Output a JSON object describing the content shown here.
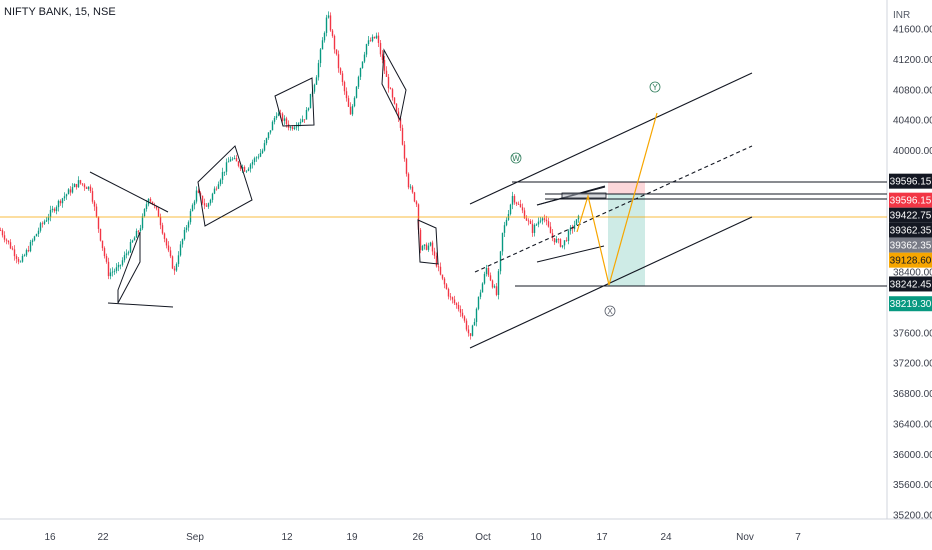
{
  "chart_data": {
    "type": "candlestick",
    "title": "NIFTY BANK, 15, NSE",
    "y_unit": "INR",
    "ylim": [
      35100,
      41950
    ],
    "x_ticks": [
      "16",
      "22",
      "Sep",
      "12",
      "19",
      "26",
      "Oct",
      "10",
      "17",
      "24",
      "Nov",
      "7"
    ],
    "y_ticks": [
      "41600.00",
      "41200.00",
      "40800.00",
      "40400.00",
      "40000.00",
      "39600.00",
      "39200.00",
      "38800.00",
      "38400.00",
      "38000.00",
      "37600.00",
      "37200.00",
      "36800.00",
      "36400.00",
      "36000.00",
      "35600.00",
      "35200.00"
    ],
    "price_labels": [
      {
        "value": 39596.15,
        "text": "39596.15",
        "bg": "#131722",
        "fg": "#ffffff"
      },
      {
        "value": 39596.15,
        "text": "39596.15",
        "bg": "#f23645",
        "fg": "#ffffff"
      },
      {
        "value": 39422.75,
        "text": "39422.75",
        "bg": "#131722",
        "fg": "#ffffff"
      },
      {
        "value": 39362.35,
        "text": "39362.35",
        "bg": "#131722",
        "fg": "#ffffff"
      },
      {
        "value": 39362.35,
        "text": "39362.35",
        "bg": "#787b86",
        "fg": "#ffffff"
      },
      {
        "value": 39128.6,
        "text": "39128.60",
        "bg": "#f7a600",
        "fg": "#131722"
      },
      {
        "value": 38242.45,
        "text": "38242.45",
        "bg": "#131722",
        "fg": "#ffffff"
      },
      {
        "value": 38219.3,
        "text": "38219.30",
        "bg": "#089981",
        "fg": "#ffffff"
      }
    ],
    "current_price": 39128.6,
    "wave_labels": [
      "W",
      "Y",
      "X"
    ],
    "price_anchors": [
      {
        "x": 0,
        "v": 38950
      },
      {
        "x": 20,
        "v": 38520
      },
      {
        "x": 40,
        "v": 39000
      },
      {
        "x": 60,
        "v": 39350
      },
      {
        "x": 78,
        "v": 39580
      },
      {
        "x": 90,
        "v": 39500
      },
      {
        "x": 100,
        "v": 38850
      },
      {
        "x": 108,
        "v": 38380
      },
      {
        "x": 118,
        "v": 38450
      },
      {
        "x": 128,
        "v": 38700
      },
      {
        "x": 140,
        "v": 39000
      },
      {
        "x": 148,
        "v": 39400
      },
      {
        "x": 158,
        "v": 39150
      },
      {
        "x": 168,
        "v": 38650
      },
      {
        "x": 174,
        "v": 38400
      },
      {
        "x": 178,
        "v": 38650
      },
      {
        "x": 186,
        "v": 39000
      },
      {
        "x": 196,
        "v": 39450
      },
      {
        "x": 206,
        "v": 39250
      },
      {
        "x": 218,
        "v": 39600
      },
      {
        "x": 230,
        "v": 39900
      },
      {
        "x": 245,
        "v": 39750
      },
      {
        "x": 262,
        "v": 40000
      },
      {
        "x": 276,
        "v": 40500
      },
      {
        "x": 290,
        "v": 40300
      },
      {
        "x": 305,
        "v": 40450
      },
      {
        "x": 316,
        "v": 41000
      },
      {
        "x": 327,
        "v": 41800
      },
      {
        "x": 338,
        "v": 41100
      },
      {
        "x": 350,
        "v": 40450
      },
      {
        "x": 358,
        "v": 41000
      },
      {
        "x": 366,
        "v": 41400
      },
      {
        "x": 376,
        "v": 41500
      },
      {
        "x": 386,
        "v": 40950
      },
      {
        "x": 400,
        "v": 40300
      },
      {
        "x": 408,
        "v": 39550
      },
      {
        "x": 416,
        "v": 39300
      },
      {
        "x": 420,
        "v": 38700
      },
      {
        "x": 430,
        "v": 38750
      },
      {
        "x": 440,
        "v": 38350
      },
      {
        "x": 450,
        "v": 38050
      },
      {
        "x": 460,
        "v": 37900
      },
      {
        "x": 470,
        "v": 37520
      },
      {
        "x": 478,
        "v": 38050
      },
      {
        "x": 486,
        "v": 38450
      },
      {
        "x": 496,
        "v": 38100
      },
      {
        "x": 502,
        "v": 38900
      },
      {
        "x": 512,
        "v": 39400
      },
      {
        "x": 522,
        "v": 39200
      },
      {
        "x": 532,
        "v": 38950
      },
      {
        "x": 542,
        "v": 39150
      },
      {
        "x": 552,
        "v": 38850
      },
      {
        "x": 562,
        "v": 38750
      },
      {
        "x": 570,
        "v": 38950
      },
      {
        "x": 578,
        "v": 39100
      }
    ]
  }
}
